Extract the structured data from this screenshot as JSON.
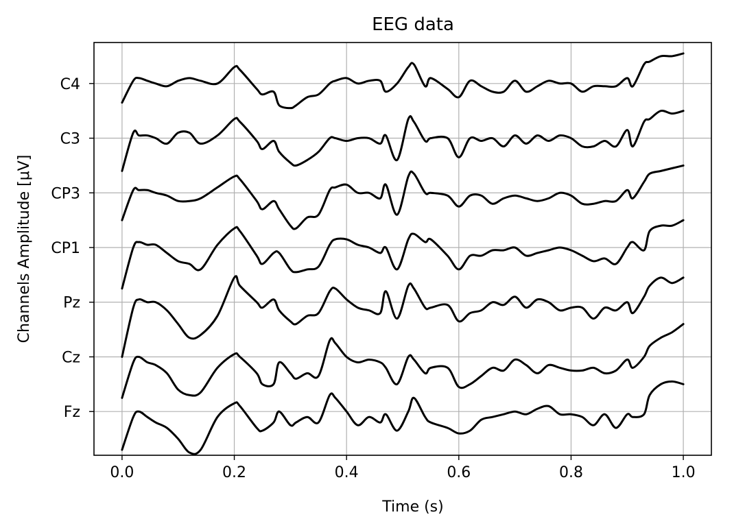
{
  "chart_data": {
    "type": "line",
    "title": "EEG data",
    "xlabel": "Time (s)",
    "ylabel": "Channels Amplitude [μV]",
    "xlim": [
      -0.05,
      1.05
    ],
    "xticks": [
      0.0,
      0.2,
      0.4,
      0.6,
      0.8,
      1.0
    ],
    "xtick_labels": [
      "0.0",
      "0.2",
      "0.4",
      "0.6",
      "0.8",
      "1.0"
    ],
    "channels": [
      "Fz",
      "Cz",
      "Pz",
      "CP1",
      "CP3",
      "C3",
      "C4"
    ],
    "ylim": [
      -0.8,
      6.75
    ],
    "grid": true,
    "colors": {
      "trace": "#000000",
      "grid": "#b0b0b0",
      "axes": "#000000"
    },
    "x": [
      0.0,
      0.02,
      0.03,
      0.045,
      0.06,
      0.08,
      0.1,
      0.12,
      0.14,
      0.17,
      0.2,
      0.21,
      0.24,
      0.25,
      0.27,
      0.28,
      0.3,
      0.31,
      0.33,
      0.35,
      0.37,
      0.38,
      0.4,
      0.42,
      0.44,
      0.46,
      0.47,
      0.49,
      0.51,
      0.52,
      0.54,
      0.55,
      0.58,
      0.6,
      0.62,
      0.64,
      0.66,
      0.68,
      0.7,
      0.72,
      0.74,
      0.76,
      0.78,
      0.8,
      0.82,
      0.84,
      0.86,
      0.88,
      0.9,
      0.91,
      0.93,
      0.94,
      0.96,
      0.98,
      1.0
    ],
    "series": [
      {
        "name": "Fz",
        "values": [
          -0.7,
          -0.1,
          0.0,
          -0.1,
          -0.2,
          -0.3,
          -0.5,
          -0.75,
          -0.7,
          -0.1,
          0.15,
          0.1,
          -0.3,
          -0.35,
          -0.2,
          0.0,
          -0.25,
          -0.2,
          -0.1,
          -0.2,
          0.3,
          0.25,
          0.0,
          -0.25,
          -0.1,
          -0.2,
          -0.05,
          -0.35,
          0.0,
          0.25,
          -0.1,
          -0.2,
          -0.3,
          -0.4,
          -0.35,
          -0.15,
          -0.1,
          -0.05,
          0.0,
          -0.05,
          0.05,
          0.1,
          -0.05,
          -0.05,
          -0.1,
          -0.25,
          -0.05,
          -0.3,
          -0.05,
          -0.1,
          -0.05,
          0.3,
          0.5,
          0.55,
          0.5
        ]
      },
      {
        "name": "Cz",
        "values": [
          0.25,
          0.9,
          1.0,
          0.9,
          0.85,
          0.7,
          0.4,
          0.3,
          0.35,
          0.8,
          1.05,
          1.0,
          0.7,
          0.5,
          0.5,
          0.9,
          0.7,
          0.6,
          0.7,
          0.65,
          1.3,
          1.25,
          1.0,
          0.9,
          0.95,
          0.9,
          0.8,
          0.5,
          1.0,
          0.95,
          0.7,
          0.8,
          0.8,
          0.45,
          0.5,
          0.65,
          0.8,
          0.75,
          0.95,
          0.85,
          0.7,
          0.85,
          0.8,
          0.75,
          0.75,
          0.8,
          0.7,
          0.75,
          0.95,
          0.8,
          1.0,
          1.2,
          1.35,
          1.45,
          1.6
        ]
      },
      {
        "name": "Pz",
        "values": [
          1.0,
          1.9,
          2.05,
          2.0,
          2.0,
          1.85,
          1.6,
          1.35,
          1.4,
          1.75,
          2.45,
          2.3,
          2.0,
          1.9,
          2.05,
          1.85,
          1.65,
          1.6,
          1.75,
          1.8,
          2.2,
          2.25,
          2.05,
          1.9,
          1.85,
          1.8,
          2.2,
          1.7,
          2.3,
          2.25,
          1.9,
          1.9,
          1.95,
          1.65,
          1.8,
          1.85,
          2.0,
          1.95,
          2.1,
          1.9,
          2.05,
          2.0,
          1.85,
          1.9,
          1.9,
          1.7,
          1.9,
          1.85,
          2.0,
          1.8,
          2.1,
          2.3,
          2.45,
          2.35,
          2.45
        ]
      },
      {
        "name": "CP1",
        "values": [
          2.25,
          3.0,
          3.1,
          3.05,
          3.05,
          2.9,
          2.75,
          2.7,
          2.6,
          3.05,
          3.35,
          3.3,
          2.85,
          2.7,
          2.9,
          2.9,
          2.6,
          2.55,
          2.6,
          2.65,
          3.05,
          3.15,
          3.15,
          3.05,
          3.0,
          2.9,
          3.0,
          2.6,
          3.15,
          3.25,
          3.1,
          3.15,
          2.85,
          2.6,
          2.85,
          2.85,
          2.95,
          2.95,
          3.0,
          2.85,
          2.9,
          2.95,
          3.0,
          2.95,
          2.85,
          2.75,
          2.8,
          2.7,
          3.0,
          3.1,
          2.95,
          3.3,
          3.4,
          3.4,
          3.5
        ]
      },
      {
        "name": "CP3",
        "values": [
          3.5,
          4.05,
          4.05,
          4.05,
          4.0,
          3.95,
          3.85,
          3.85,
          3.9,
          4.1,
          4.3,
          4.25,
          3.85,
          3.7,
          3.85,
          3.7,
          3.4,
          3.35,
          3.55,
          3.6,
          4.05,
          4.1,
          4.15,
          4.0,
          4.0,
          3.9,
          4.15,
          3.6,
          4.3,
          4.35,
          4.0,
          4.0,
          3.95,
          3.75,
          3.95,
          3.95,
          3.8,
          3.9,
          3.95,
          3.9,
          3.85,
          3.9,
          4.0,
          3.95,
          3.8,
          3.8,
          3.85,
          3.85,
          4.05,
          3.9,
          4.2,
          4.35,
          4.4,
          4.45,
          4.5
        ]
      },
      {
        "name": "C3",
        "values": [
          4.4,
          5.1,
          5.05,
          5.05,
          5.0,
          4.9,
          5.1,
          5.1,
          4.9,
          5.05,
          5.35,
          5.3,
          4.95,
          4.8,
          4.95,
          4.75,
          4.55,
          4.5,
          4.6,
          4.75,
          5.0,
          5.0,
          4.95,
          5.0,
          5.0,
          4.9,
          5.05,
          4.6,
          5.35,
          5.3,
          4.95,
          5.0,
          5.0,
          4.65,
          5.0,
          4.95,
          5.0,
          4.85,
          5.05,
          4.9,
          5.05,
          4.95,
          5.05,
          5.0,
          4.85,
          4.85,
          4.95,
          4.85,
          5.15,
          4.85,
          5.3,
          5.35,
          5.5,
          5.45,
          5.5
        ]
      },
      {
        "name": "C4",
        "values": [
          5.65,
          6.05,
          6.1,
          6.05,
          6.0,
          5.95,
          6.05,
          6.1,
          6.05,
          6.0,
          6.3,
          6.25,
          5.9,
          5.8,
          5.85,
          5.6,
          5.55,
          5.6,
          5.75,
          5.8,
          6.0,
          6.05,
          6.1,
          6.0,
          6.05,
          6.05,
          5.85,
          6.0,
          6.3,
          6.35,
          5.95,
          6.1,
          5.9,
          5.75,
          6.05,
          5.95,
          5.85,
          5.85,
          6.05,
          5.85,
          5.95,
          6.05,
          6.0,
          6.0,
          5.85,
          5.95,
          5.95,
          5.95,
          6.1,
          5.95,
          6.35,
          6.4,
          6.5,
          6.5,
          6.55
        ]
      }
    ]
  }
}
